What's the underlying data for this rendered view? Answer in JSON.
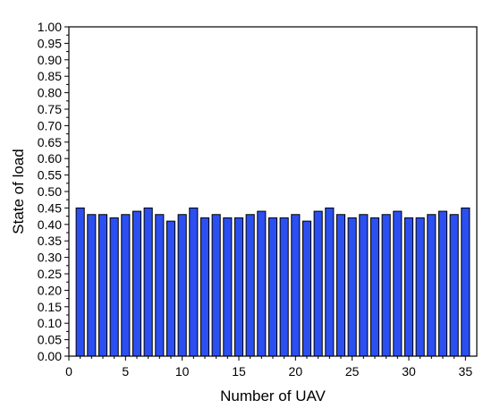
{
  "chart_data": {
    "type": "bar",
    "title": "",
    "xlabel": "Number of UAV",
    "ylabel": "State of load",
    "xlim": [
      0,
      36
    ],
    "ylim": [
      0,
      1.0
    ],
    "x_major_ticks": [
      0,
      5,
      10,
      15,
      20,
      25,
      30,
      35
    ],
    "x_tick_labels": [
      "0",
      "5",
      "10",
      "15",
      "20",
      "25",
      "30",
      "35"
    ],
    "y_major_ticks": [
      0.0,
      0.05,
      0.1,
      0.15,
      0.2,
      0.25,
      0.3,
      0.35,
      0.4,
      0.45,
      0.5,
      0.55,
      0.6,
      0.65,
      0.7,
      0.75,
      0.8,
      0.85,
      0.9,
      0.95,
      1.0
    ],
    "y_tick_labels": [
      "0.00",
      "0.05",
      "0.10",
      "0.15",
      "0.20",
      "0.25",
      "0.30",
      "0.35",
      "0.40",
      "0.45",
      "0.50",
      "0.55",
      "0.60",
      "0.65",
      "0.70",
      "0.75",
      "0.80",
      "0.85",
      "0.90",
      "0.95",
      "1.00"
    ],
    "grid": false,
    "bar_color": "#2b4ff0",
    "bar_edge_color": "#000000",
    "x": [
      1,
      2,
      3,
      4,
      5,
      6,
      7,
      8,
      9,
      10,
      11,
      12,
      13,
      14,
      15,
      16,
      17,
      18,
      19,
      20,
      21,
      22,
      23,
      24,
      25,
      26,
      27,
      28,
      29,
      30,
      31,
      32,
      33,
      34,
      35
    ],
    "values": [
      0.45,
      0.43,
      0.43,
      0.42,
      0.43,
      0.44,
      0.45,
      0.43,
      0.41,
      0.43,
      0.45,
      0.42,
      0.43,
      0.42,
      0.42,
      0.43,
      0.44,
      0.42,
      0.42,
      0.43,
      0.41,
      0.44,
      0.45,
      0.43,
      0.42,
      0.43,
      0.42,
      0.43,
      0.44,
      0.42,
      0.42,
      0.43,
      0.44,
      0.43,
      0.45
    ]
  }
}
